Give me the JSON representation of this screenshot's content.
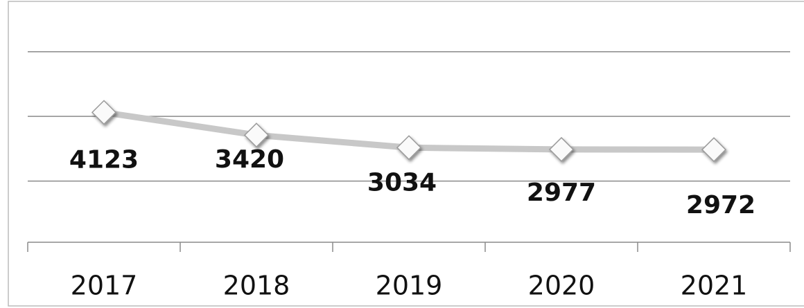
{
  "chart_data": {
    "type": "line",
    "categories": [
      "2017",
      "2018",
      "2019",
      "2020",
      "2021"
    ],
    "series": [
      {
        "color": "#c8c8c8",
        "values": [
          4123,
          3420,
          3034,
          2977,
          2972
        ]
      }
    ],
    "ylim": [
      0,
      7000
    ],
    "yticks": [
      2000,
      4000,
      6000
    ],
    "grid": true
  }
}
